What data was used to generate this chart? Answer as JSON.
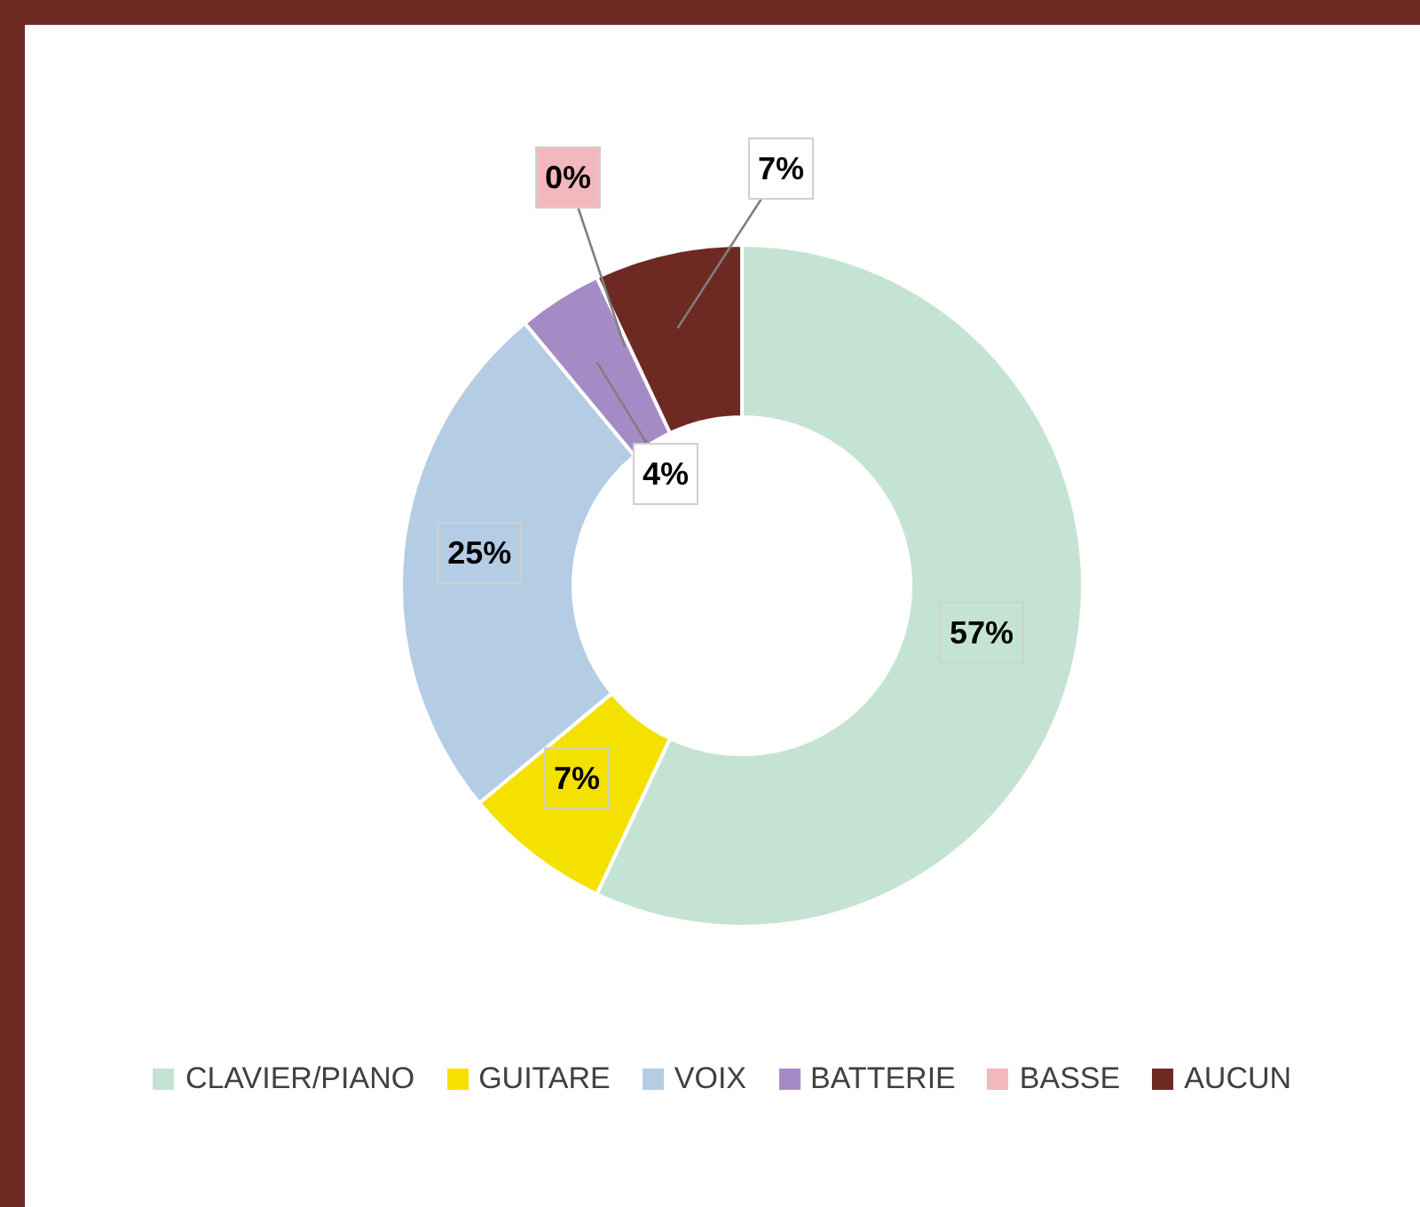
{
  "chart_data": {
    "type": "donut",
    "categories": [
      "CLAVIER/PIANO",
      "GUITARE",
      "VOIX",
      "BATTERIE",
      "BASSE",
      "AUCUN"
    ],
    "values": [
      57,
      7,
      25,
      4,
      0,
      7
    ],
    "value_labels": [
      "57%",
      "7%",
      "25%",
      "4%",
      "0%",
      "7%"
    ],
    "colors": [
      "#c5e3d3",
      "#f5e100",
      "#b4cde4",
      "#a58bc6",
      "#f2b8be",
      "#6e2a22"
    ],
    "legend": "bottom"
  }
}
